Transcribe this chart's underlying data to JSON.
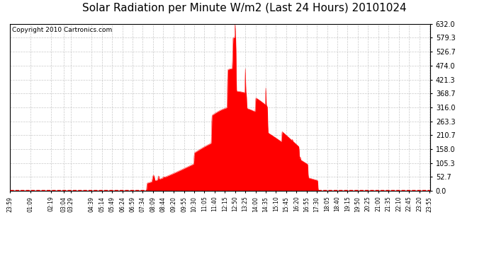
{
  "title": "Solar Radiation per Minute W/m2 (Last 24 Hours) 20101024",
  "copyright_text": "Copyright 2010 Cartronics.com",
  "yticks": [
    0.0,
    52.7,
    105.3,
    158.0,
    210.7,
    263.3,
    316.0,
    368.7,
    421.3,
    474.0,
    526.7,
    579.3,
    632.0
  ],
  "ymax": 632.0,
  "ymin": 0.0,
  "fill_color": "#ff0000",
  "line_color": "#ff0000",
  "background_color": "#ffffff",
  "grid_color": "#bbbbbb",
  "title_fontsize": 11,
  "copyright_fontsize": 6.5,
  "x_tick_fontsize": 5.5,
  "y_tick_fontsize": 7,
  "x_labels": [
    "23:59",
    "01:09",
    "02:19",
    "03:04",
    "03:29",
    "04:39",
    "05:14",
    "05:49",
    "06:24",
    "06:59",
    "07:34",
    "08:09",
    "08:44",
    "09:20",
    "09:55",
    "10:30",
    "11:05",
    "11:40",
    "12:15",
    "12:50",
    "13:25",
    "14:00",
    "14:35",
    "15:10",
    "15:45",
    "16:20",
    "16:55",
    "17:30",
    "18:05",
    "18:40",
    "19:15",
    "19:50",
    "20:25",
    "21:00",
    "21:35",
    "22:10",
    "22:45",
    "23:20",
    "23:55"
  ]
}
